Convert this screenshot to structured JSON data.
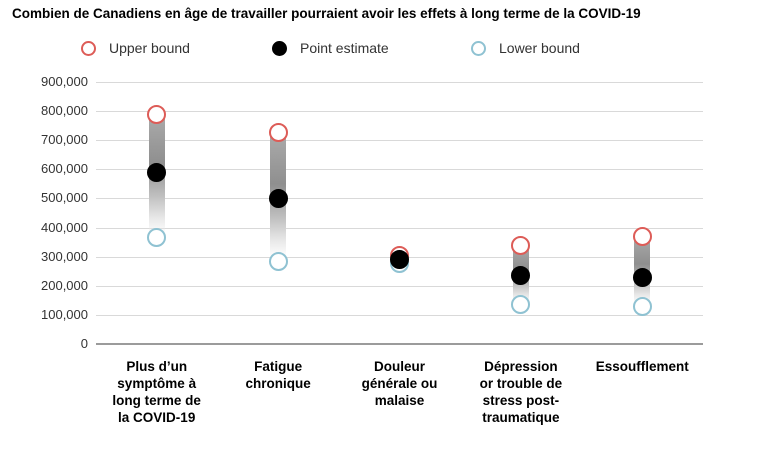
{
  "title": "Combien de Canadiens en âge de travailler pourraient avoir les effets à long terme de la COVID-19",
  "legend": [
    {
      "label": "Upper bound",
      "marker": "open-circle",
      "color": "#dd5c57"
    },
    {
      "label": "Point estimate",
      "marker": "filled-circle",
      "color": "#000000"
    },
    {
      "label": "Lower bound",
      "marker": "open-circle",
      "color": "#8fc2d2"
    }
  ],
  "colors": {
    "upper_bound": "#dd5c57",
    "point_estimate": "#000000",
    "lower_bound": "#8fc2d2",
    "gridline": "#d9d9d9",
    "zero_line": "#9b9b9b",
    "tick_text": "#333333"
  },
  "chart_data": {
    "type": "scatter",
    "subtype": "dot-range-plot",
    "title": "Combien de Canadiens en âge de travailler pourraient avoir les effets à long terme de la COVID-19",
    "categories": [
      "Plus d’un symptôme à long terme de la COVID-19",
      "Fatigue chronique",
      "Douleur générale ou malaise",
      "Dépression or trouble de stress post-traumatique",
      "Essoufflement"
    ],
    "category_label_lines": [
      "Plus d’un\nsymptôme à\nlong terme de\nla COVID-19",
      "Fatigue\nchronique",
      "Douleur\ngénérale ou\nmalaise",
      "Dépression\nor trouble de\nstress post-\ntraumatique",
      "Essoufflement"
    ],
    "series": [
      {
        "name": "Upper bound",
        "style": "open-circle",
        "color": "#dd5c57",
        "values": [
          790000,
          725000,
          305000,
          340000,
          370000
        ]
      },
      {
        "name": "Point estimate",
        "style": "filled-circle",
        "color": "#000000",
        "values": [
          590000,
          500000,
          290000,
          235000,
          230000
        ]
      },
      {
        "name": "Lower bound",
        "style": "open-circle",
        "color": "#8fc2d2",
        "values": [
          365000,
          285000,
          275000,
          135000,
          130000
        ]
      }
    ],
    "xlabel": "",
    "ylabel": "",
    "ylim": [
      0,
      900000
    ],
    "ytick_step": 100000,
    "ytick_labels": [
      "0",
      "100,000",
      "200,000",
      "300,000",
      "400,000",
      "500,000",
      "600,000",
      "700,000",
      "800,000",
      "900,000"
    ],
    "grid": true,
    "legend_position": "top"
  }
}
